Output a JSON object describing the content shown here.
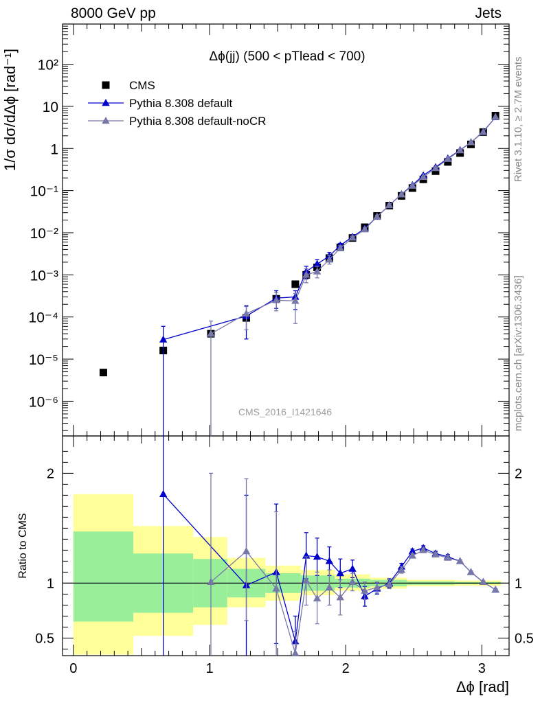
{
  "header": {
    "left": "8000 GeV pp",
    "right": "Jets"
  },
  "side_labels": {
    "rivet": "Rivet 3.1.10, ≥ 2.7M events",
    "mcplots": "mcplots.cern.ch [arXiv:1306.3436]"
  },
  "chart_data": [
    {
      "type": "scatter",
      "title": "Δϕ(jj) (500 < pTlead <  700)",
      "watermark": "CMS_2016_I1421646",
      "xlabel": "Δϕ [rad]",
      "ylabel": "1/σ dσ/dΔϕ [rad⁻¹]",
      "ylog": true,
      "xlim": [
        -0.08,
        3.2
      ],
      "ylim": [
        1.5e-07,
        900
      ],
      "y_tick_labels": [
        "10⁻⁶",
        "10⁻⁵",
        "10⁻⁴",
        "10⁻³",
        "10⁻²",
        "10⁻¹",
        "1",
        "10",
        "10²"
      ],
      "legend_position": "top-left",
      "series": [
        {
          "name": "CMS",
          "color": "#000000",
          "marker": "square",
          "x": [
            0.22,
            0.66,
            1.01,
            1.27,
            1.49,
            1.63,
            1.71,
            1.79,
            1.88,
            1.96,
            2.05,
            2.14,
            2.23,
            2.32,
            2.41,
            2.49,
            2.57,
            2.66,
            2.75,
            2.84,
            2.92,
            3.01,
            3.1
          ],
          "y": [
            4.8e-06,
            1.6e-05,
            4e-05,
            9.5e-05,
            0.00027,
            0.0006,
            0.001,
            0.0015,
            0.0025,
            0.0045,
            0.0075,
            0.0135,
            0.025,
            0.044,
            0.075,
            0.115,
            0.185,
            0.29,
            0.48,
            0.78,
            1.25,
            2.45,
            6.0
          ]
        },
        {
          "name": "Pythia 8.308 default",
          "color": "#0000cc",
          "marker": "triangle",
          "x": [
            0.66,
            1.27,
            1.49,
            1.63,
            1.71,
            1.79,
            1.88,
            1.96,
            2.05,
            2.14,
            2.23,
            2.32,
            2.41,
            2.49,
            2.57,
            2.66,
            2.75,
            2.84,
            2.92,
            3.01,
            3.1
          ],
          "y": [
            2.9e-05,
            0.000105,
            0.00028,
            0.0003,
            0.0012,
            0.0018,
            0.0028,
            0.005,
            0.008,
            0.0125,
            0.024,
            0.045,
            0.082,
            0.135,
            0.23,
            0.36,
            0.58,
            0.92,
            1.4,
            2.5,
            5.5
          ],
          "y_err_up": [
            6e-05,
            0.00018,
            0.00042,
            0.00042,
            0.0016,
            0.0023,
            0.0034,
            0.0056,
            0.0086,
            0.0135,
            0.026,
            0.048,
            0.086,
            0.14,
            0.24,
            0.37,
            0.59,
            0.93,
            1.42,
            2.52,
            5.55
          ],
          "y_err_down": [
            1.5e-07,
            3e-05,
            0.00016,
            0.00015,
            0.0008,
            0.0013,
            0.0022,
            0.0043,
            0.0073,
            0.0115,
            0.022,
            0.042,
            0.078,
            0.13,
            0.22,
            0.35,
            0.57,
            0.91,
            1.38,
            2.48,
            5.45
          ]
        },
        {
          "name": "Pythia 8.308 default-noCR",
          "color": "#7878a8",
          "marker": "triangle",
          "x": [
            1.01,
            1.27,
            1.49,
            1.63,
            1.71,
            1.79,
            1.88,
            1.96,
            2.05,
            2.14,
            2.23,
            2.32,
            2.41,
            2.49,
            2.57,
            2.66,
            2.75,
            2.84,
            2.92,
            3.01,
            3.1
          ],
          "y": [
            4e-05,
            0.00012,
            0.00025,
            0.00024,
            0.001,
            0.0012,
            0.0023,
            0.0043,
            0.0076,
            0.012,
            0.024,
            0.045,
            0.081,
            0.13,
            0.21,
            0.34,
            0.56,
            0.9,
            1.4,
            2.45,
            5.6
          ],
          "y_err_up": [
            8e-05,
            0.00019,
            0.00038,
            0.00036,
            0.0014,
            0.0016,
            0.0029,
            0.0049,
            0.0082,
            0.013,
            0.026,
            0.048,
            0.085,
            0.135,
            0.22,
            0.35,
            0.57,
            0.91,
            1.42,
            2.48,
            5.65
          ],
          "y_err_down": [
            1.5e-07,
            5e-05,
            0.00014,
            7e-05,
            0.00065,
            0.00085,
            0.0018,
            0.0038,
            0.007,
            0.011,
            0.022,
            0.042,
            0.077,
            0.125,
            0.2,
            0.33,
            0.55,
            0.89,
            1.38,
            2.43,
            5.55
          ]
        }
      ]
    },
    {
      "type": "scatter",
      "ylabel": "Ratio to CMS",
      "xlabel": "Δϕ [rad]",
      "xlim": [
        -0.08,
        3.2
      ],
      "ylim": [
        0.34,
        2.34
      ],
      "x_tick_labels": [
        "0",
        "1",
        "2",
        "3"
      ],
      "y_tick_labels": [
        "0.5",
        "1",
        "2"
      ],
      "reference_line": 1,
      "uncertainty_bands": {
        "colors": {
          "outer": "#ffff99",
          "inner": "#99ee99"
        },
        "bins": [
          {
            "x0": 0.0,
            "x1": 0.44,
            "outer": [
              0.35,
              1.81
            ],
            "inner": [
              0.65,
              1.47
            ]
          },
          {
            "x0": 0.44,
            "x1": 0.88,
            "outer": [
              0.52,
              1.52
            ],
            "inner": [
              0.73,
              1.27
            ]
          },
          {
            "x0": 0.88,
            "x1": 1.13,
            "outer": [
              0.62,
              1.42
            ],
            "inner": [
              0.78,
              1.22
            ]
          },
          {
            "x0": 1.13,
            "x1": 1.41,
            "outer": [
              0.78,
              1.23
            ],
            "inner": [
              0.87,
              1.13
            ]
          },
          {
            "x0": 1.41,
            "x1": 1.67,
            "outer": [
              0.84,
              1.16
            ],
            "inner": [
              0.91,
              1.09
            ]
          },
          {
            "x0": 1.67,
            "x1": 1.92,
            "outer": [
              0.89,
              1.12
            ],
            "inner": [
              0.93,
              1.07
            ]
          },
          {
            "x0": 1.92,
            "x1": 2.18,
            "outer": [
              0.93,
              1.08
            ],
            "inner": [
              0.96,
              1.04
            ]
          },
          {
            "x0": 2.18,
            "x1": 2.45,
            "outer": [
              0.95,
              1.05
            ],
            "inner": [
              0.97,
              1.03
            ]
          },
          {
            "x0": 2.45,
            "x1": 2.8,
            "outer": [
              0.97,
              1.03
            ],
            "inner": [
              0.985,
              1.015
            ]
          },
          {
            "x0": 2.8,
            "x1": 3.14,
            "outer": [
              0.975,
              1.025
            ],
            "inner": [
              0.99,
              1.01
            ]
          }
        ]
      },
      "series": [
        {
          "name": "Pythia 8.308 default",
          "color": "#0000cc",
          "x": [
            0.66,
            1.27,
            1.49,
            1.63,
            1.71,
            1.79,
            1.88,
            1.96,
            2.05,
            2.14,
            2.23,
            2.32,
            2.41,
            2.49,
            2.57,
            2.66,
            2.75,
            2.84,
            2.92,
            3.01,
            3.1
          ],
          "y": [
            1.81,
            0.98,
            1.1,
            0.47,
            1.25,
            1.24,
            1.2,
            1.09,
            1.13,
            0.88,
            0.95,
            1.0,
            1.15,
            1.29,
            1.32,
            1.27,
            1.24,
            1.2,
            1.1,
            1.01,
            0.94
          ],
          "y_err_up": [
            2.6,
            1.8,
            1.72,
            0.7,
            1.46,
            1.41,
            1.33,
            1.22,
            1.21,
            0.97,
            1.0,
            1.04,
            1.18,
            1.31,
            1.34,
            1.29,
            1.26,
            1.21,
            1.11,
            1.02,
            0.95
          ],
          "y_err_down": [
            0.34,
            0.34,
            0.45,
            0.34,
            1.04,
            1.07,
            1.07,
            0.96,
            1.05,
            0.79,
            0.9,
            0.96,
            1.12,
            1.27,
            1.3,
            1.25,
            1.22,
            1.19,
            1.09,
            1.0,
            0.93
          ]
        },
        {
          "name": "Pythia 8.308 default-noCR",
          "color": "#7878a8",
          "x": [
            1.01,
            1.27,
            1.49,
            1.63,
            1.71,
            1.79,
            1.88,
            1.96,
            2.05,
            2.14,
            2.23,
            2.32,
            2.41,
            2.49,
            2.57,
            2.66,
            2.75,
            2.84,
            2.92,
            3.01,
            3.1
          ],
          "y": [
            1.01,
            1.29,
            0.95,
            0.36,
            1.02,
            0.86,
            0.96,
            0.87,
            1.01,
            0.93,
            0.96,
            0.99,
            1.12,
            1.25,
            1.3,
            1.26,
            1.23,
            1.2,
            1.1,
            1.01,
            0.94
          ],
          "y_err_up": [
            2.0,
            1.95,
            1.65,
            0.56,
            1.24,
            1.1,
            1.12,
            1.03,
            1.09,
            1.01,
            1.01,
            1.03,
            1.15,
            1.27,
            1.32,
            1.28,
            1.25,
            1.21,
            1.11,
            1.02,
            0.95
          ],
          "y_err_down": [
            0.34,
            0.66,
            0.34,
            0.34,
            0.8,
            0.63,
            0.8,
            0.71,
            0.93,
            0.85,
            0.91,
            0.95,
            1.09,
            1.23,
            1.28,
            1.24,
            1.21,
            1.19,
            1.09,
            1.0,
            0.93
          ]
        }
      ]
    }
  ]
}
